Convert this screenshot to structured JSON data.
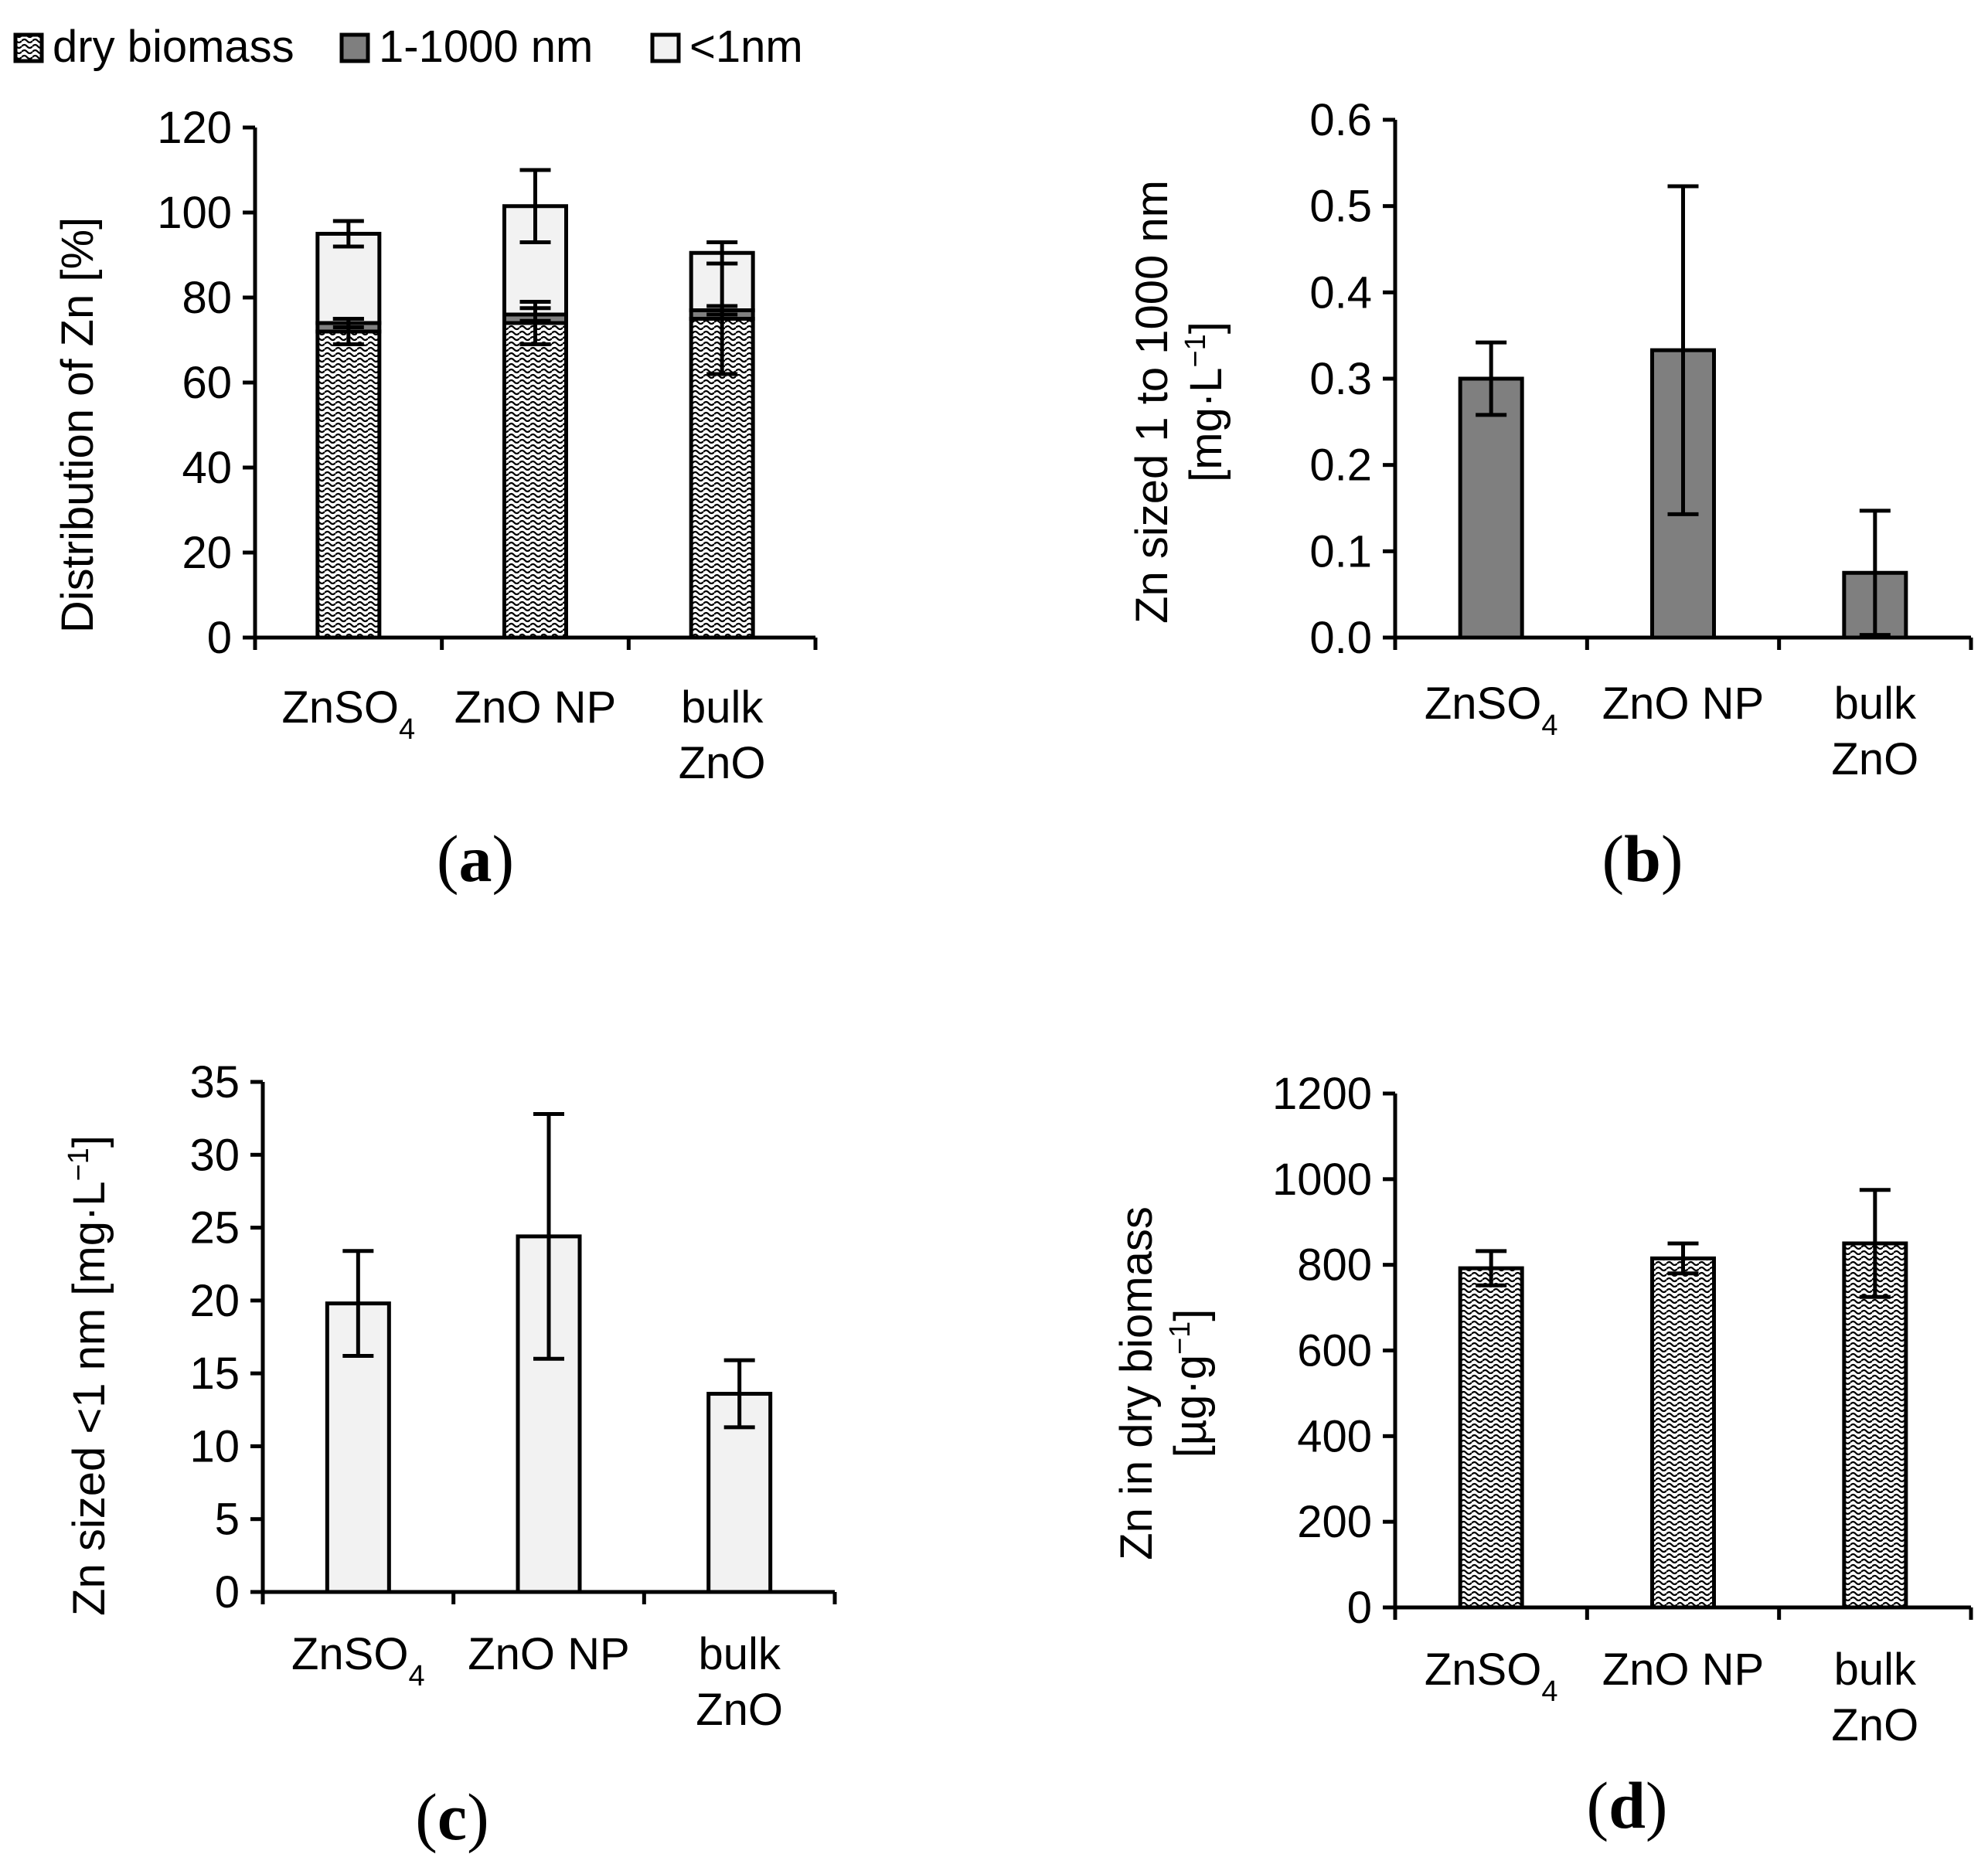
{
  "legend": {
    "items": [
      {
        "label": "dry biomass",
        "pattern": "dots"
      },
      {
        "label": "1-1000 nm",
        "pattern": "dark"
      },
      {
        "label": "<1nm",
        "pattern": "light"
      }
    ]
  },
  "colors": {
    "dark_fill": "#7f7f7f",
    "light_fill": "#f2f2f2",
    "stroke": "#000000",
    "background": "#ffffff"
  },
  "categories": [
    {
      "main": "ZnSO",
      "sub": "4",
      "line2": ""
    },
    {
      "main": "ZnO NP",
      "sub": "",
      "line2": ""
    },
    {
      "main": "bulk",
      "sub": "",
      "line2": "ZnO"
    }
  ],
  "chart_data": [
    {
      "id": "a",
      "panel_label": {
        "open": "(",
        "letter": "a",
        "close": ")"
      },
      "type": "bar",
      "stacked": true,
      "ylabel": "Distribution of Zn [%]",
      "ylim": [
        0,
        120
      ],
      "yticks": [
        "0",
        "20",
        "40",
        "60",
        "80",
        "100",
        "120"
      ],
      "series": [
        {
          "name": "dry biomass",
          "pattern": "dots",
          "values": [
            72,
            74,
            75
          ],
          "errors": [
            3,
            5,
            13
          ]
        },
        {
          "name": "1-1000 nm",
          "pattern": "dark",
          "values": [
            2,
            2,
            2
          ],
          "errors": [
            1,
            1.5,
            1
          ]
        },
        {
          "name": "<1nm",
          "pattern": "light",
          "values": [
            21,
            25.5,
            13.5
          ],
          "errors": [
            3,
            8.5,
            2.5
          ]
        }
      ]
    },
    {
      "id": "b",
      "panel_label": {
        "open": "(",
        "letter": "b",
        "close": ")"
      },
      "type": "bar",
      "ylabel": "Zn sized 1 to 1000 nm",
      "ylabel_unit": {
        "prefix": "[mg·L",
        "sup": "−1",
        "suffix": "]"
      },
      "ylim": [
        0,
        0.6
      ],
      "yticks": [
        "0.0",
        "0.1",
        "0.2",
        "0.3",
        "0.4",
        "0.5",
        "0.6"
      ],
      "series": [
        {
          "name": "1-1000 nm",
          "pattern": "dark",
          "values": [
            0.3,
            0.333,
            0.075
          ],
          "errors": [
            0.042,
            0.19,
            0.072
          ]
        }
      ]
    },
    {
      "id": "c",
      "panel_label": {
        "open": "(",
        "letter": "c",
        "close": ")"
      },
      "type": "bar",
      "ylabel": "Zn sized <1 nm [mg·L",
      "ylabel_sup": "−1",
      "ylabel_suffix": "]",
      "ylim": [
        0,
        35
      ],
      "yticks": [
        "0",
        "5",
        "10",
        "15",
        "20",
        "25",
        "30",
        "35"
      ],
      "series": [
        {
          "name": "<1nm",
          "pattern": "light",
          "values": [
            19.8,
            24.4,
            13.6
          ],
          "errors": [
            3.6,
            8.4,
            2.3
          ]
        }
      ]
    },
    {
      "id": "d",
      "panel_label": {
        "open": "(",
        "letter": "d",
        "close": ")"
      },
      "type": "bar",
      "ylabel": "Zn in dry biomass",
      "ylabel_unit": {
        "prefix": "[µg·g",
        "sup": "−1",
        "suffix": "]"
      },
      "ylim": [
        0,
        1200
      ],
      "yticks": [
        "0",
        "200",
        "400",
        "600",
        "800",
        "1000",
        "1200"
      ],
      "series": [
        {
          "name": "dry biomass",
          "pattern": "dots",
          "values": [
            792,
            815,
            850
          ],
          "errors": [
            40,
            35,
            125
          ]
        }
      ]
    }
  ]
}
